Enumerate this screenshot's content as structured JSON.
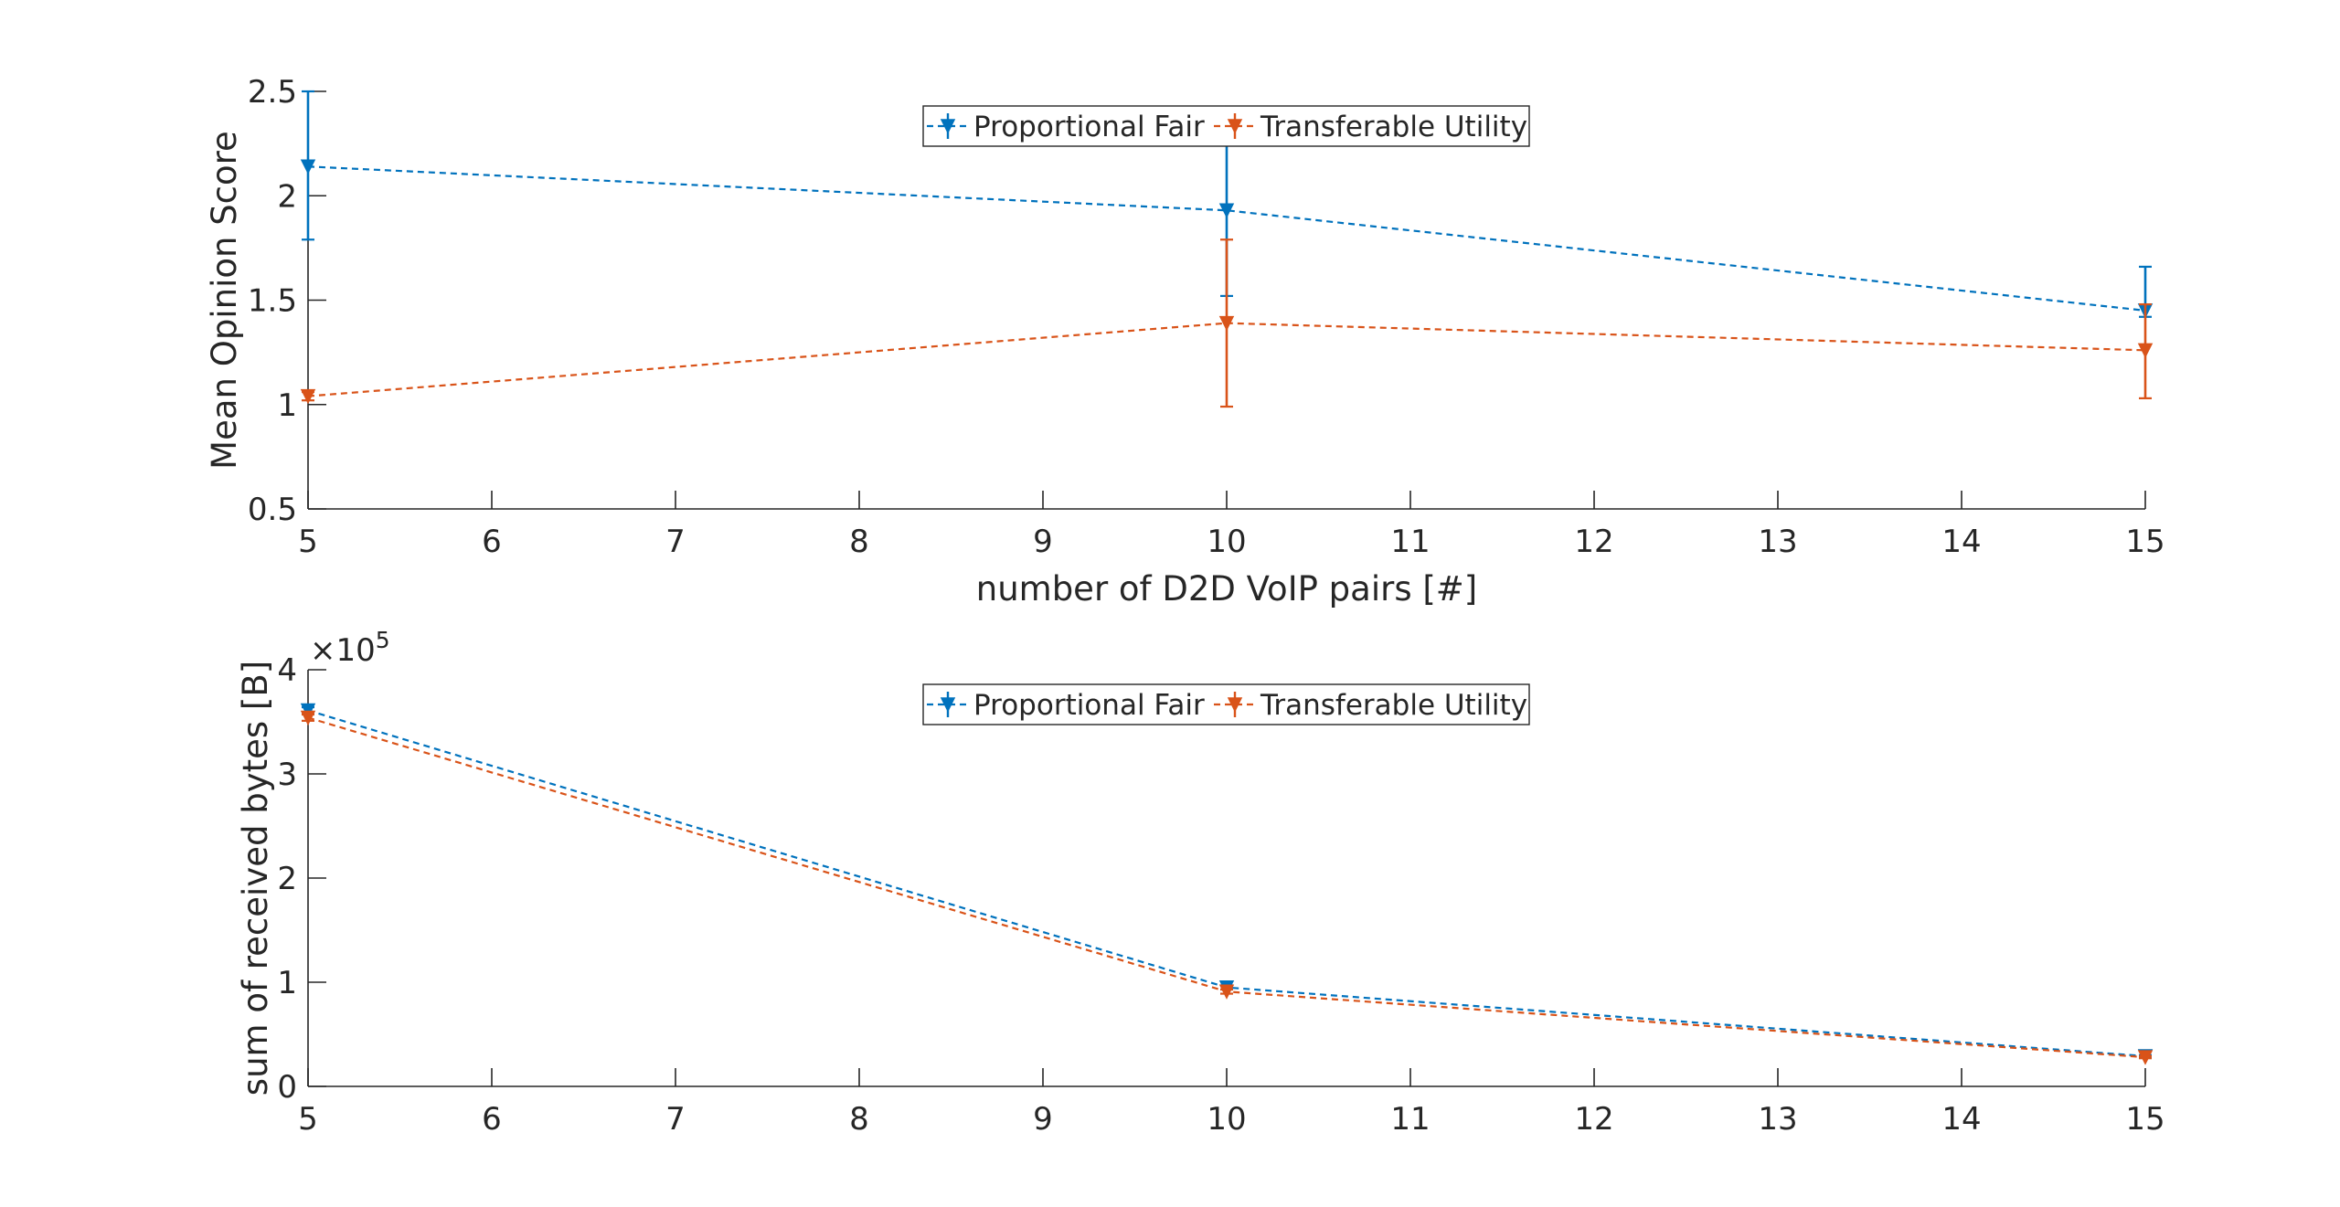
{
  "chart_data": [
    {
      "type": "line",
      "error_bars": true,
      "xlabel": "number of D2D VoIP pairs [#]",
      "ylabel": "Mean Opinion Score",
      "xlim": [
        5,
        15
      ],
      "ylim": [
        0.5,
        2.5
      ],
      "xticks": [
        5,
        6,
        7,
        8,
        9,
        10,
        11,
        12,
        13,
        14,
        15
      ],
      "yticks": [
        0.5,
        1,
        1.5,
        2,
        2.5
      ],
      "ytick_labels": [
        "0.5",
        "1",
        "1.5",
        "2",
        "2.5"
      ],
      "exponent_label": "",
      "grid": false,
      "legend_position": "top-center",
      "series": [
        {
          "name": "Proportional Fair",
          "color": "#0072BD",
          "x": [
            5,
            10,
            15
          ],
          "y": [
            2.14,
            1.93,
            1.45
          ],
          "err_low": [
            1.79,
            1.52,
            1.42
          ],
          "err_high": [
            2.5,
            2.28,
            1.66
          ]
        },
        {
          "name": "Transferable Utility",
          "color": "#D95319",
          "x": [
            5,
            10,
            15
          ],
          "y": [
            1.04,
            1.39,
            1.26
          ],
          "err_low": [
            1.02,
            0.99,
            1.03
          ],
          "err_high": [
            1.06,
            1.79,
            1.48
          ]
        }
      ]
    },
    {
      "type": "line",
      "error_bars": true,
      "xlabel": "",
      "ylabel": "sum of received bytes [B]",
      "xlim": [
        5,
        15
      ],
      "ylim": [
        0,
        400000
      ],
      "xticks": [
        5,
        6,
        7,
        8,
        9,
        10,
        11,
        12,
        13,
        14,
        15
      ],
      "yticks": [
        0,
        100000,
        200000,
        300000,
        400000
      ],
      "ytick_labels": [
        "0",
        "1",
        "2",
        "3",
        "4"
      ],
      "exponent_label": "×10",
      "exponent_power": "5",
      "grid": false,
      "legend_position": "top-center",
      "series": [
        {
          "name": "Proportional Fair",
          "color": "#0072BD",
          "x": [
            5,
            10,
            15
          ],
          "y": [
            361000,
            95000,
            29000
          ],
          "err_low": [
            358000,
            93000,
            28000
          ],
          "err_high": [
            364000,
            97000,
            30000
          ]
        },
        {
          "name": "Transferable Utility",
          "color": "#D95319",
          "x": [
            5,
            10,
            15
          ],
          "y": [
            354000,
            91000,
            28000
          ],
          "err_low": [
            351000,
            89000,
            27000
          ],
          "err_high": [
            357000,
            93000,
            29000
          ]
        }
      ]
    }
  ]
}
